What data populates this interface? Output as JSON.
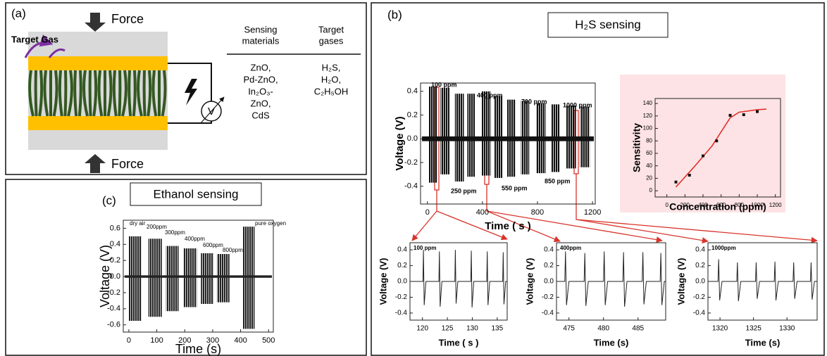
{
  "panels": {
    "a": {
      "label": "(a)",
      "force_top": "Force",
      "force_bottom": "Force",
      "target_gas": "Target Gas",
      "meter": "V",
      "table": {
        "headers": [
          [
            "Sensing",
            "materials"
          ],
          [
            "Target",
            "gases"
          ]
        ],
        "columns": [
          [
            "ZnO,",
            "Pd-ZnO,",
            "In₂O₃-",
            "ZnO,",
            "CdS"
          ],
          [
            "H₂S,",
            "H₂O,",
            "C₂H₅OH"
          ]
        ]
      }
    },
    "b": {
      "label": "(b)",
      "title": "H₂S sensing"
    },
    "c": {
      "label": "(c)",
      "title": "Ethanol sensing"
    }
  },
  "chart_data": [
    {
      "type": "bursts",
      "x_label": "Time ( s )",
      "y_label": "Voltage (V)",
      "annotations": [
        "100 ppm",
        "400 ppm",
        "700 ppm",
        "1000 ppm",
        "250 ppm",
        "550 ppm",
        "850 ppm"
      ],
      "x_start": [
        10,
        95,
        200,
        290,
        395,
        485,
        580,
        680,
        790,
        900,
        1010,
        1110
      ],
      "x_end": [
        70,
        160,
        265,
        345,
        460,
        545,
        640,
        740,
        860,
        960,
        1080,
        1180
      ],
      "high": [
        0.44,
        0.43,
        0.38,
        0.38,
        0.4,
        0.36,
        0.33,
        0.32,
        0.3,
        0.29,
        0.28,
        0.27
      ],
      "low": [
        -0.37,
        -0.3,
        -0.36,
        -0.32,
        -0.31,
        -0.33,
        -0.32,
        -0.3,
        -0.29,
        -0.28,
        -0.25,
        -0.24
      ],
      "baseline": [
        -0.02,
        0.02
      ],
      "color": "#111111",
      "xlim": [
        -50,
        1220
      ],
      "ylim": [
        -0.55,
        0.47
      ],
      "xticks": [
        0,
        400,
        800,
        1200
      ],
      "yticks": [
        -0.4,
        -0.2,
        {
          "value": 0,
          "label": "0.0"
        },
        0.2,
        0.4
      ]
    },
    {
      "type": "scatter",
      "x_label": "Concentration (ppm)",
      "y_label": "Sensitivity",
      "x": [
        100,
        250,
        400,
        550,
        700,
        850,
        1000
      ],
      "values": [
        14,
        25,
        56,
        80,
        121,
        122,
        127
      ],
      "color": "#111111",
      "fit": {
        "x": [
          100,
          300,
          500,
          700,
          800,
          1000,
          1100
        ],
        "values": [
          6,
          38,
          72,
          117,
          126,
          130,
          131
        ],
        "color": "#e0312b"
      },
      "background": "#fde3e5",
      "xlim": [
        -130,
        1257
      ],
      "ylim": [
        -10,
        148
      ],
      "xticks": [
        0,
        200,
        400,
        600,
        800,
        1000,
        1200
      ],
      "yticks": [
        0,
        20,
        40,
        60,
        80,
        100,
        120,
        140
      ]
    },
    {
      "type": "line",
      "x_label": "Time ( s )",
      "y_label": "Voltage (V)",
      "annotations": [
        "100 ppm"
      ],
      "x": [
        117.5,
        120.1,
        120.2,
        120.35,
        120.7,
        123.3,
        123.4,
        123.55,
        123.9,
        126.5,
        126.6,
        126.75,
        127.1,
        129.7,
        129.8,
        129.95,
        130.3,
        132.9,
        133,
        133.15,
        133.5,
        136.1,
        136.2,
        136.35,
        136.7,
        137
      ],
      "values": [
        0,
        0,
        0.4,
        -0.3,
        0,
        0,
        0.38,
        -0.32,
        0,
        0,
        0.4,
        -0.28,
        0,
        0,
        0.39,
        -0.33,
        0,
        0,
        0.38,
        -0.3,
        0,
        0,
        0.37,
        -0.29,
        0,
        0
      ],
      "color": "#222222",
      "xlim": [
        117.5,
        137
      ],
      "ylim": [
        -0.49,
        0.49
      ],
      "xticks": [
        120,
        125,
        130,
        135
      ],
      "yticks": [
        -0.4,
        -0.2,
        {
          "value": 0,
          "label": "0.0"
        },
        0.2,
        0.4
      ]
    },
    {
      "type": "line",
      "x_label": "Time (s)",
      "y_label": "Voltage (V)",
      "annotations": [
        "400ppm"
      ],
      "x": [
        473.2,
        474.4,
        474.5,
        474.65,
        475,
        477.2,
        477.3,
        477.45,
        477.8,
        480,
        480.1,
        480.25,
        480.6,
        482.8,
        482.9,
        483.05,
        483.4,
        485.6,
        485.7,
        485.85,
        486.2,
        488.2,
        488.3,
        488.45,
        488.8,
        489
      ],
      "values": [
        0,
        0,
        0.38,
        -0.3,
        0,
        0,
        0.36,
        -0.31,
        0,
        0,
        0.38,
        -0.3,
        0,
        0,
        0.37,
        -0.32,
        0,
        0,
        0.37,
        -0.29,
        0,
        0,
        0.36,
        -0.3,
        0,
        0
      ],
      "color": "#222222",
      "xlim": [
        473.2,
        489
      ],
      "ylim": [
        -0.49,
        0.49
      ],
      "xticks": [
        475,
        480,
        485
      ],
      "yticks": [
        -0.4,
        -0.2,
        {
          "value": 0,
          "label": "0.0"
        },
        0.2,
        0.4
      ]
    },
    {
      "type": "line",
      "x_label": "Time (s)",
      "y_label": "Voltage (V)",
      "annotations": [
        "1000ppm"
      ],
      "x": [
        1318.2,
        1319.7,
        1319.8,
        1319.95,
        1320.3,
        1322.5,
        1322.6,
        1322.75,
        1323.1,
        1325.3,
        1325.4,
        1325.55,
        1325.9,
        1328.1,
        1328.2,
        1328.35,
        1328.7,
        1330.9,
        1331,
        1331.15,
        1331.5,
        1333.5,
        1333.6,
        1333.75,
        1334.1,
        1334.5
      ],
      "values": [
        0,
        0,
        0.28,
        -0.24,
        0,
        0,
        0.24,
        -0.25,
        0,
        0,
        0.24,
        -0.22,
        0,
        0,
        0.25,
        -0.24,
        0,
        0,
        0.24,
        -0.22,
        0,
        0,
        0.24,
        -0.23,
        0,
        0
      ],
      "color": "#222222",
      "xlim": [
        1318.2,
        1334.5
      ],
      "ylim": [
        -0.49,
        0.49
      ],
      "xticks": [
        1320,
        1325,
        1330
      ],
      "yticks": [
        -0.4,
        -0.2,
        {
          "value": 0,
          "label": "0.0"
        },
        0.2,
        0.4
      ]
    },
    {
      "type": "bursts",
      "x_label": "Time (s)",
      "y_label": "Voltage (V)",
      "annotations": [
        "dry air",
        "200ppm",
        "300ppm",
        "400ppm",
        "600ppm",
        "800ppm",
        "pure oxygen"
      ],
      "x_start": [
        0,
        70,
        133,
        195,
        258,
        315,
        408
      ],
      "x_end": [
        45,
        118,
        178,
        243,
        303,
        360,
        450
      ],
      "high": [
        0.5,
        0.47,
        0.38,
        0.35,
        0.29,
        0.28,
        0.62
      ],
      "low": [
        -0.55,
        -0.5,
        -0.43,
        -0.38,
        -0.34,
        -0.32,
        -0.65
      ],
      "baseline": [
        -0.015,
        0.015
      ],
      "color": "#222222",
      "xlim": [
        -20,
        517
      ],
      "ylim": [
        -0.69,
        0.7
      ],
      "xticks": [
        0,
        100,
        200,
        300,
        400,
        500
      ],
      "yticks": [
        -0.6,
        -0.4,
        -0.2,
        {
          "value": 0,
          "label": "0.0"
        },
        0.2,
        0.4,
        0.6
      ]
    }
  ]
}
